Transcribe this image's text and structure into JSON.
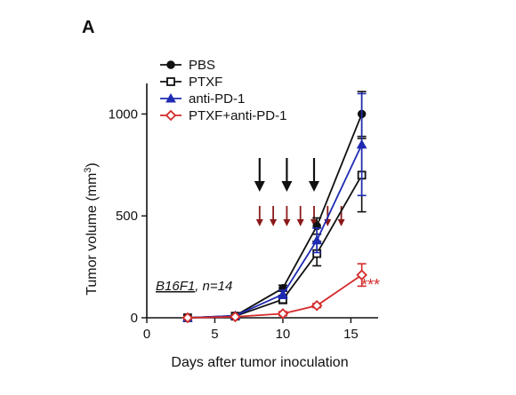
{
  "panel_label": "A",
  "chart_data": {
    "type": "line",
    "xlabel": "Days after tumor inoculation",
    "ylabel": "Tumor volume (mm",
    "ylabel_sup": "3",
    "ylabel_end": ")",
    "xlim": [
      0,
      17
    ],
    "ylim": [
      0,
      1150
    ],
    "xticks": [
      0,
      5,
      10,
      15
    ],
    "yticks": [
      0,
      500,
      1000
    ],
    "x": [
      3,
      6.5,
      10,
      12.5,
      15.8
    ],
    "series": [
      {
        "name": "PBS",
        "color": "#111111",
        "marker": "circle",
        "values": [
          0,
          10,
          145,
          450,
          1000
        ],
        "errors": [
          0,
          0,
          15,
          40,
          110
        ]
      },
      {
        "name": "PTXF",
        "color": "#111111",
        "marker": "open-square",
        "values": [
          0,
          8,
          90,
          315,
          700
        ],
        "errors": [
          0,
          0,
          20,
          60,
          180
        ]
      },
      {
        "name": "anti-PD-1",
        "color": "#1f2bb3",
        "marker": "triangle",
        "values": [
          0,
          10,
          115,
          380,
          850
        ],
        "errors": [
          0,
          0,
          20,
          60,
          250
        ]
      },
      {
        "name": "PTXF+anti-PD-1",
        "color": "#d42a2a",
        "marker": "open-diamond",
        "values": [
          0,
          5,
          20,
          60,
          210
        ],
        "errors": [
          0,
          0,
          10,
          10,
          55
        ]
      }
    ],
    "annotations": {
      "model_label": "B16F1",
      "n_label": ", n=14",
      "significance": "***",
      "black_arrow_days": [
        6.2,
        8.2,
        10.2
      ],
      "red_arrow_days": [
        6.2,
        7.2,
        8.2,
        9.2,
        10.2,
        11.2,
        12.2
      ]
    },
    "legend_position": "top-left"
  }
}
